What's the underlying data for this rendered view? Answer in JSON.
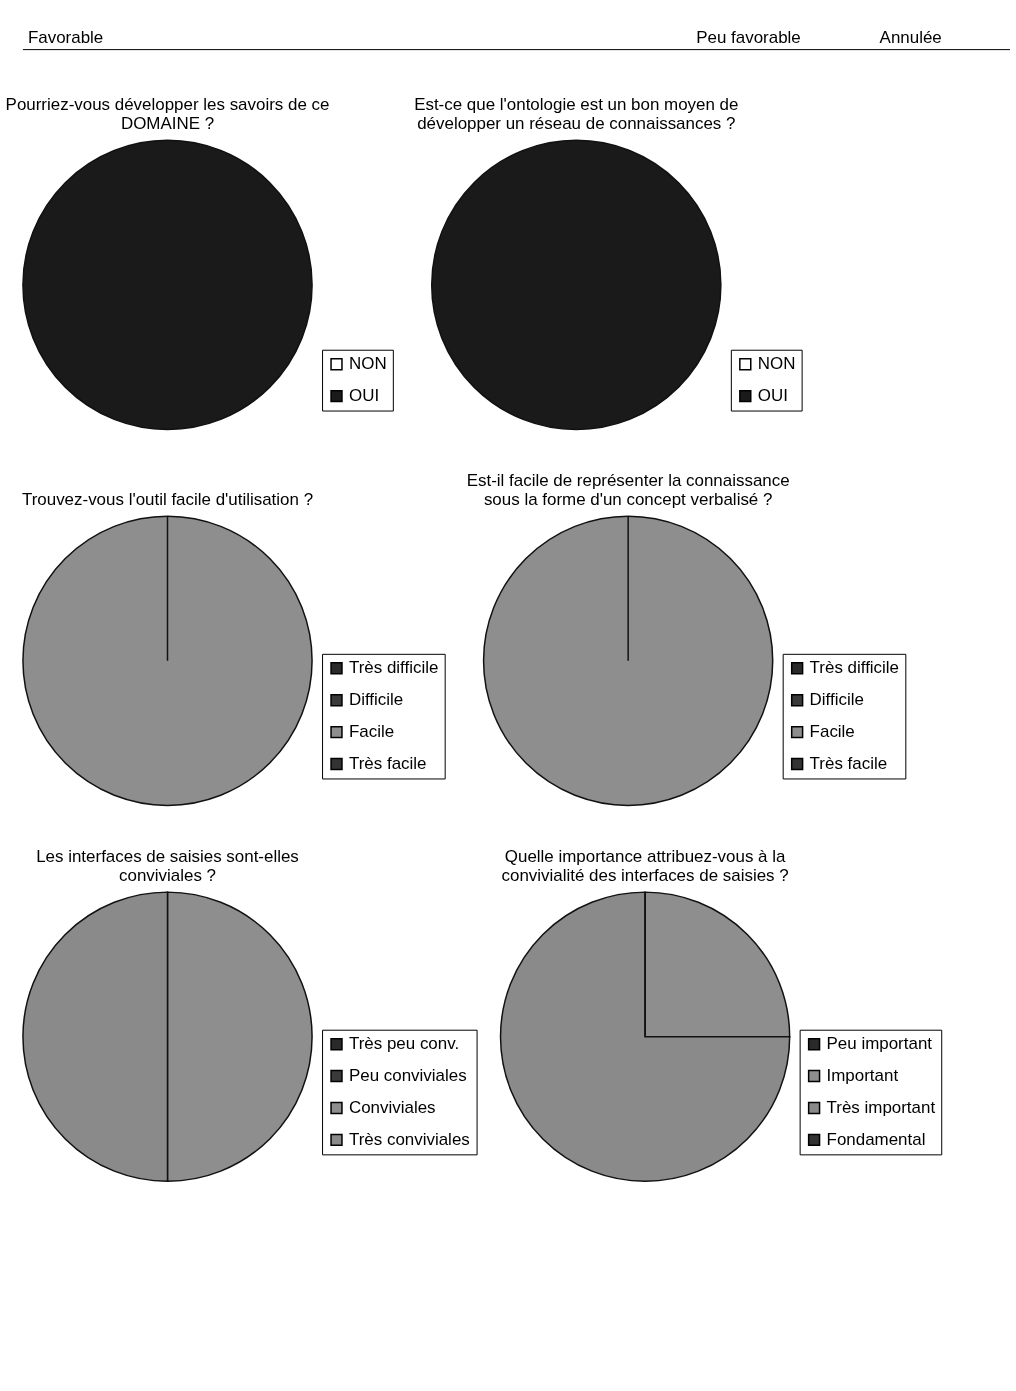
{
  "chart_data": [
    {
      "type": "other",
      "annotations": [
        "Favorable",
        "Peu favorable",
        "Annulée"
      ]
    },
    {
      "type": "pie",
      "title": "Pourriez-vous développer les savoirs de ce DOMAINE ?",
      "categories": [
        "NON",
        "OUI"
      ],
      "values": [
        0,
        100
      ],
      "colors": [
        "#ffffff",
        "#1a1a1a"
      ],
      "legend": "bottom right"
    },
    {
      "type": "pie",
      "title": "Est-ce que l'ontologie est un bon moyen de développer un réseau de connaissances ?",
      "categories": [
        "NON",
        "OUI"
      ],
      "values": [
        0,
        100
      ],
      "colors": [
        "#ffffff",
        "#1a1a1a"
      ],
      "legend": "bottom right"
    },
    {
      "type": "pie",
      "title": "Trouvez-vous l'outil facile d'utilisation ?",
      "categories": [
        "Très difficile",
        "Difficile",
        "Facile",
        "Très facile"
      ],
      "values": [
        0,
        0,
        100,
        0
      ],
      "colors": [
        "#2a2a2a",
        "#3a3a3a",
        "#8e8e8e",
        "#333333"
      ],
      "legend": "bottom right"
    },
    {
      "type": "pie",
      "title": "Est-il facile de représenter la connaissance sous la forme d'un concept verbalisé ?",
      "categories": [
        "Très difficile",
        "Difficile",
        "Facile",
        "Très facile"
      ],
      "values": [
        0,
        0,
        100,
        0
      ],
      "colors": [
        "#2a2a2a",
        "#3a3a3a",
        "#8e8e8e",
        "#333333"
      ],
      "legend": "bottom right"
    },
    {
      "type": "pie",
      "title": "Les interfaces de saisies sont-elles conviviales ?",
      "categories": [
        "Très peu conv.",
        "Peu conviviales",
        "Conviviales",
        "Très conviviales"
      ],
      "values": [
        0,
        0,
        50,
        50
      ],
      "colors": [
        "#2a2a2a",
        "#3a3a3a",
        "#8e8e8e",
        "#8a8a8a"
      ],
      "legend": "bottom right"
    },
    {
      "type": "pie",
      "title": "Quelle importance attribuez-vous à la convivialité des interfaces de saisies ?",
      "categories": [
        "Peu important",
        "Important",
        "Très important",
        "Fondamental"
      ],
      "values": [
        0,
        25,
        75,
        0
      ],
      "colors": [
        "#2a2a2a",
        "#8e8e8e",
        "#8a8a8a",
        "#333333"
      ],
      "legend": "bottom right"
    }
  ]
}
